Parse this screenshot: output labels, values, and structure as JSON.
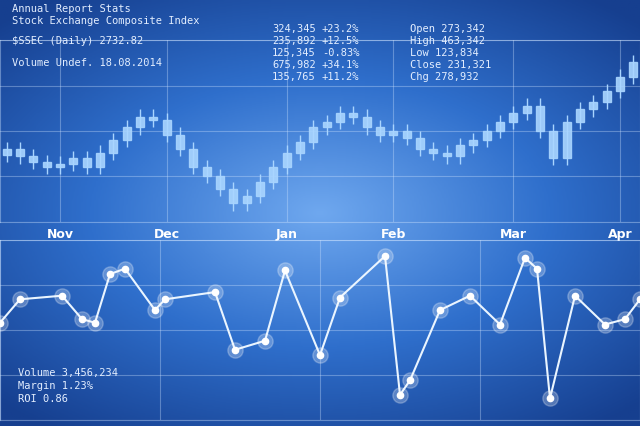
{
  "header": [
    "Annual Report Stats",
    "Stock Exchange Composite Index",
    "$SSEC (Daily) 2732.82",
    "Volume Undef. 18.08.2014"
  ],
  "quotes": [
    [
      "324,345",
      "+23.2%"
    ],
    [
      "235,892",
      "+12.5%"
    ],
    [
      "125,345",
      "-0.83%"
    ],
    [
      "675,982",
      "+34.1%"
    ],
    [
      "135,765",
      "+11.2%"
    ]
  ],
  "stats": [
    "Open 273,342",
    "High 463,342",
    "Low 123,834",
    "Close 231,321",
    "Chg 278,932"
  ],
  "footer": [
    "Volume 3,456,234",
    "Margin 1.23%",
    "ROI 0.86"
  ],
  "chart_data": [
    {
      "type": "candlestick",
      "categories": [
        null,
        null,
        null,
        null,
        "Nov",
        null,
        null,
        null,
        null,
        null,
        null,
        null,
        "Dec",
        null,
        null,
        null,
        null,
        null,
        null,
        null,
        null,
        "Jan",
        null,
        null,
        null,
        null,
        null,
        null,
        null,
        "Feb",
        null,
        null,
        null,
        null,
        null,
        null,
        null,
        null,
        "Mar",
        null,
        null,
        null,
        null,
        null,
        null,
        null,
        "Apr",
        null
      ],
      "open": [
        37,
        40,
        36,
        33,
        30,
        32,
        35,
        30,
        38,
        45,
        52,
        58,
        56,
        48,
        40,
        30,
        25,
        18,
        10,
        14,
        22,
        30,
        38,
        44,
        52,
        55,
        60,
        58,
        52,
        48,
        50,
        46,
        40,
        38,
        36,
        42,
        45,
        50,
        55,
        60,
        64,
        50,
        35,
        55,
        62,
        66,
        72,
        80
      ],
      "high": [
        44,
        44,
        40,
        37,
        36,
        39,
        39,
        42,
        49,
        56,
        62,
        62,
        60,
        52,
        44,
        34,
        29,
        22,
        18,
        26,
        34,
        42,
        48,
        56,
        59,
        64,
        64,
        62,
        56,
        54,
        54,
        50,
        44,
        42,
        46,
        49,
        54,
        59,
        64,
        68,
        68,
        54,
        59,
        66,
        70,
        76,
        84,
        92
      ],
      "low": [
        33,
        32,
        29,
        26,
        26,
        28,
        26,
        26,
        34,
        41,
        48,
        52,
        44,
        36,
        26,
        21,
        14,
        6,
        6,
        10,
        18,
        26,
        34,
        40,
        48,
        51,
        54,
        48,
        44,
        44,
        42,
        36,
        34,
        32,
        32,
        38,
        41,
        46,
        51,
        56,
        46,
        31,
        31,
        51,
        58,
        62,
        68,
        76
      ],
      "close": [
        40,
        36,
        33,
        30,
        32,
        35,
        30,
        38,
        45,
        52,
        58,
        56,
        48,
        40,
        30,
        25,
        18,
        10,
        14,
        22,
        30,
        38,
        44,
        52,
        55,
        60,
        58,
        52,
        48,
        50,
        46,
        40,
        38,
        36,
        42,
        45,
        50,
        55,
        60,
        64,
        50,
        35,
        55,
        62,
        66,
        72,
        80,
        88
      ],
      "color": "#a9d5ff",
      "ylim": [
        0,
        100
      ],
      "yticks": [
        0,
        25,
        50,
        75,
        100
      ],
      "grid": true,
      "tick_labels": "x"
    },
    {
      "type": "line",
      "x": [
        0,
        20,
        62,
        82,
        95,
        110,
        125,
        155,
        165,
        215,
        235,
        265,
        285,
        320,
        340,
        385,
        400,
        410,
        440,
        470,
        500,
        525,
        537,
        550,
        575,
        605,
        625,
        640
      ],
      "values": [
        54,
        67,
        69,
        56,
        54,
        81,
        84,
        61,
        67,
        71,
        39,
        44,
        83,
        36,
        68,
        91,
        14,
        22,
        61,
        69,
        53,
        90,
        84,
        12,
        69,
        53,
        56,
        67
      ],
      "color": "#eaf5ff",
      "marker": "o",
      "line_style": "solid",
      "xlim": [
        0,
        640
      ],
      "xticks": [
        0,
        160,
        320,
        480,
        640
      ],
      "ylim": [
        0,
        100
      ],
      "yticks": [
        0,
        25,
        50,
        75,
        100
      ],
      "grid": true,
      "tick_labels": false
    }
  ]
}
